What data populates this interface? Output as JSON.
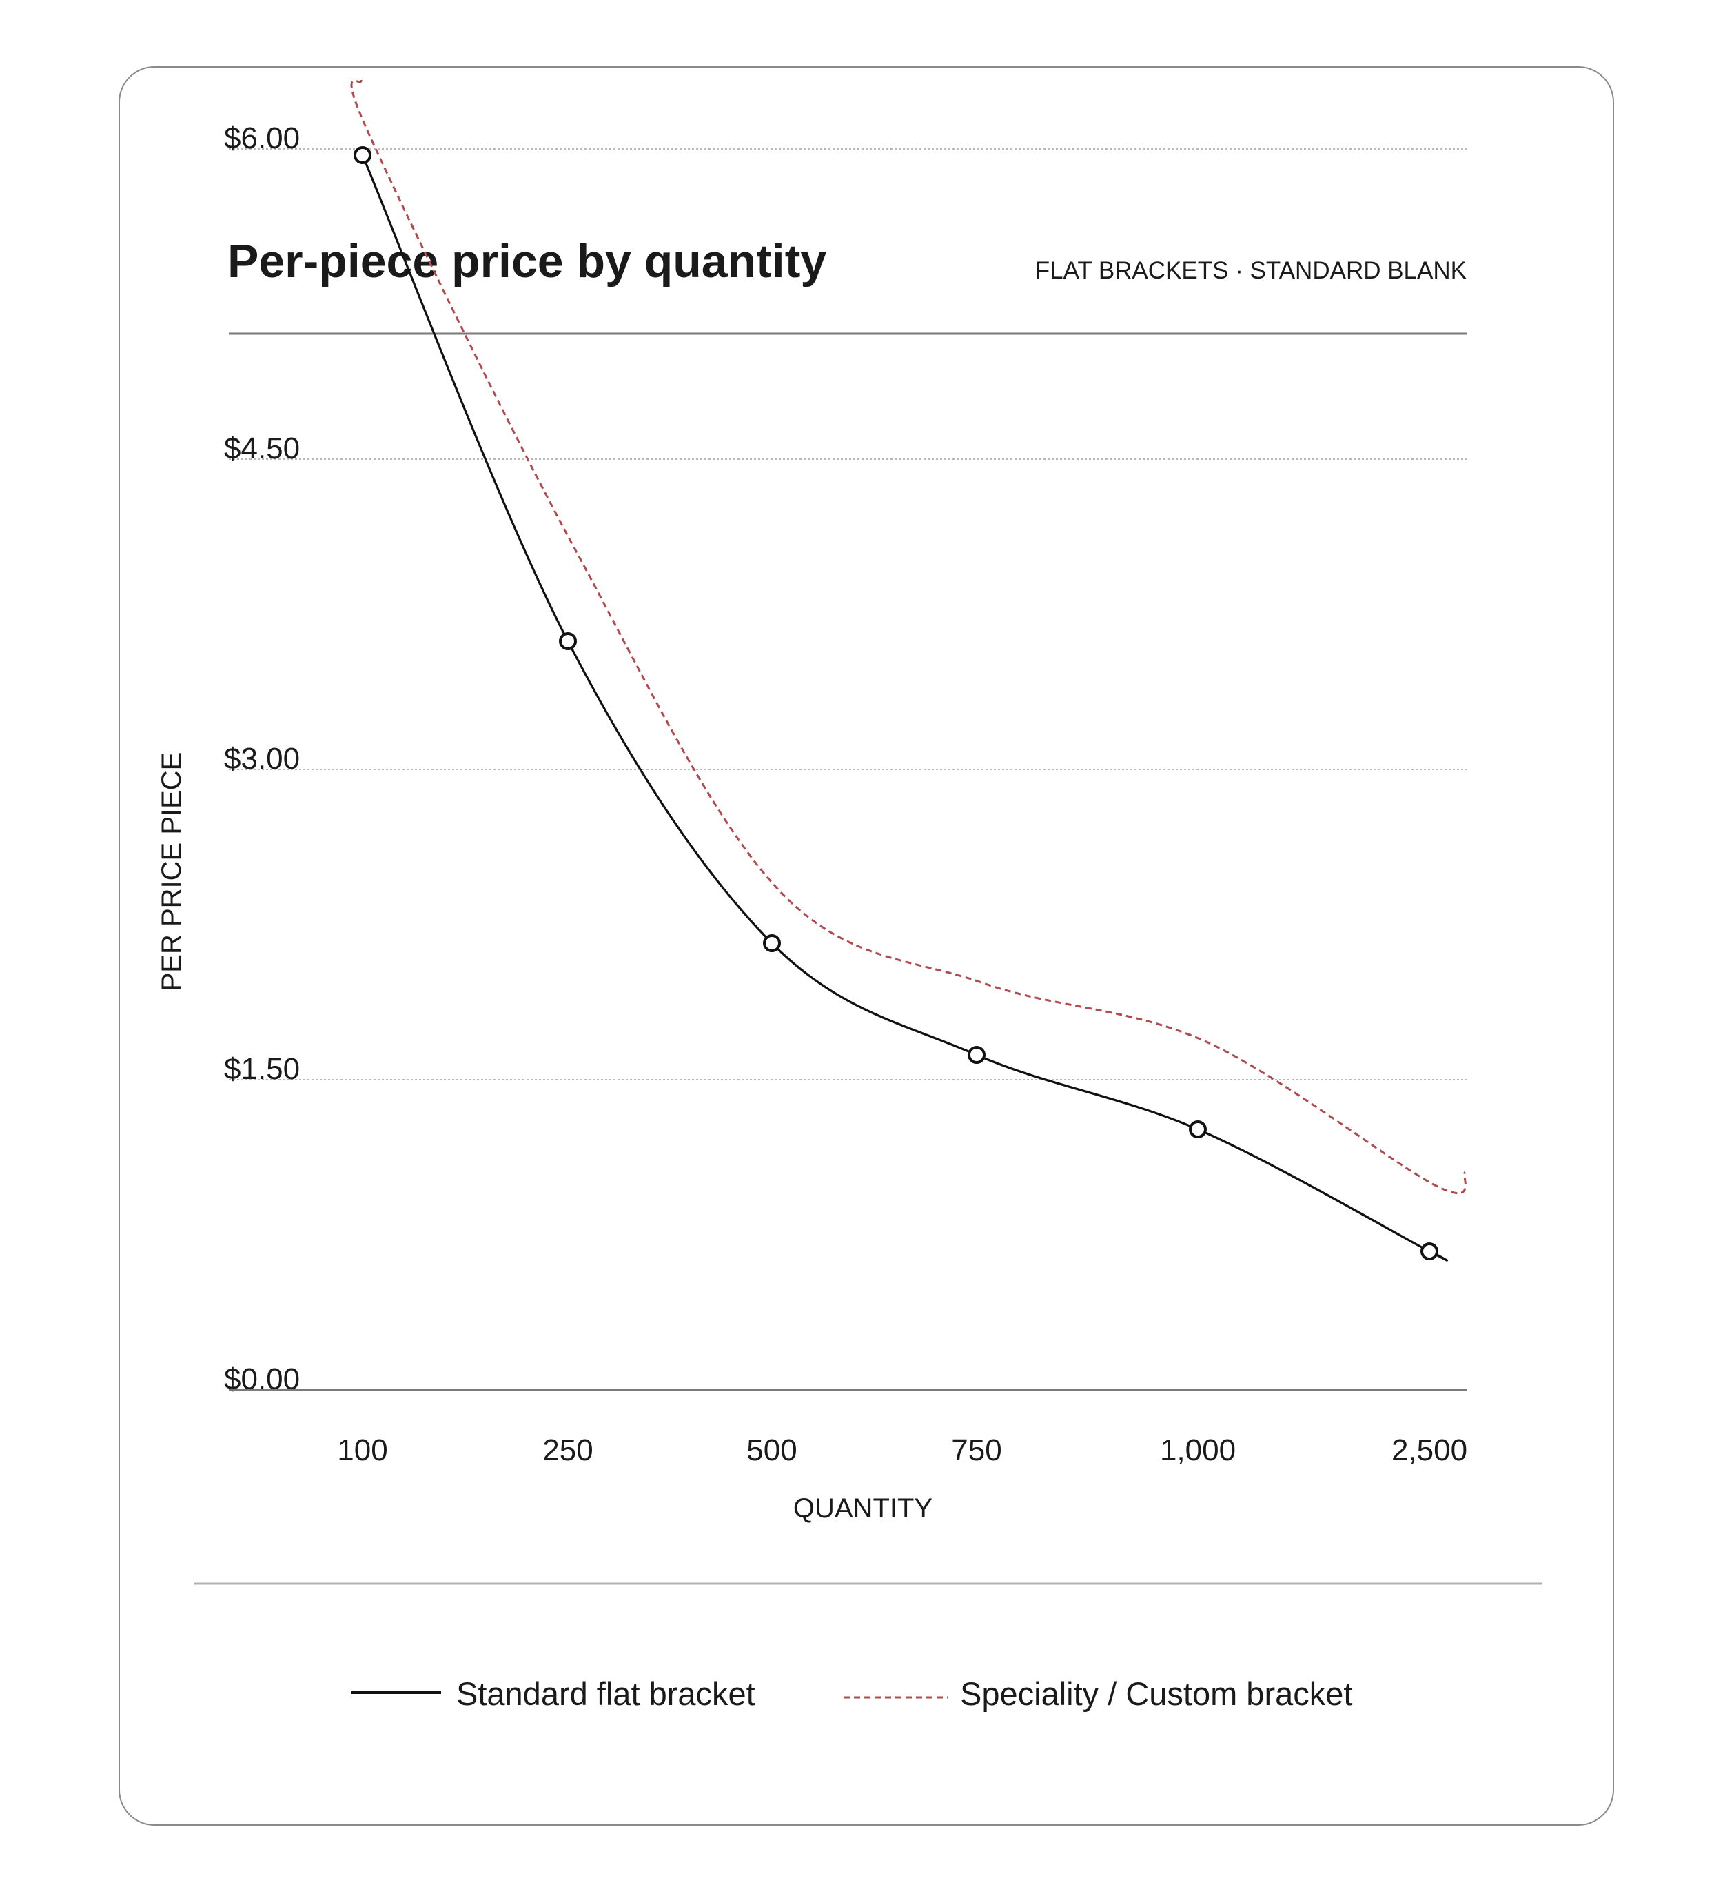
{
  "chart_data": {
    "type": "line",
    "title": "Per-piece price by quantity",
    "subtitle": "FLAT BRACKETS · STANDARD BLANK",
    "xlabel": "QUANTITY",
    "ylabel": "PER PRICE PIECE",
    "categories": [
      "100",
      "250",
      "500",
      "750",
      "1,000",
      "2,500"
    ],
    "y_ticks": [
      "$0.00",
      "$1.50",
      "$3.00",
      "$4.50",
      "$6.00"
    ],
    "ylim": [
      0,
      6
    ],
    "grid": true,
    "legend_position": "bottom",
    "series": [
      {
        "name": "Standard flat bracket",
        "values": [
          5.97,
          3.62,
          2.16,
          1.62,
          1.26,
          0.67
        ],
        "color": "#111111",
        "style": "solid",
        "markers": true
      },
      {
        "name": "Speciality / Custom bracket",
        "values": [
          6.0,
          4.0,
          2.35,
          1.9,
          1.62,
          0.92
        ],
        "color": "#b04a4e",
        "style": "dashed",
        "markers": false
      }
    ]
  }
}
